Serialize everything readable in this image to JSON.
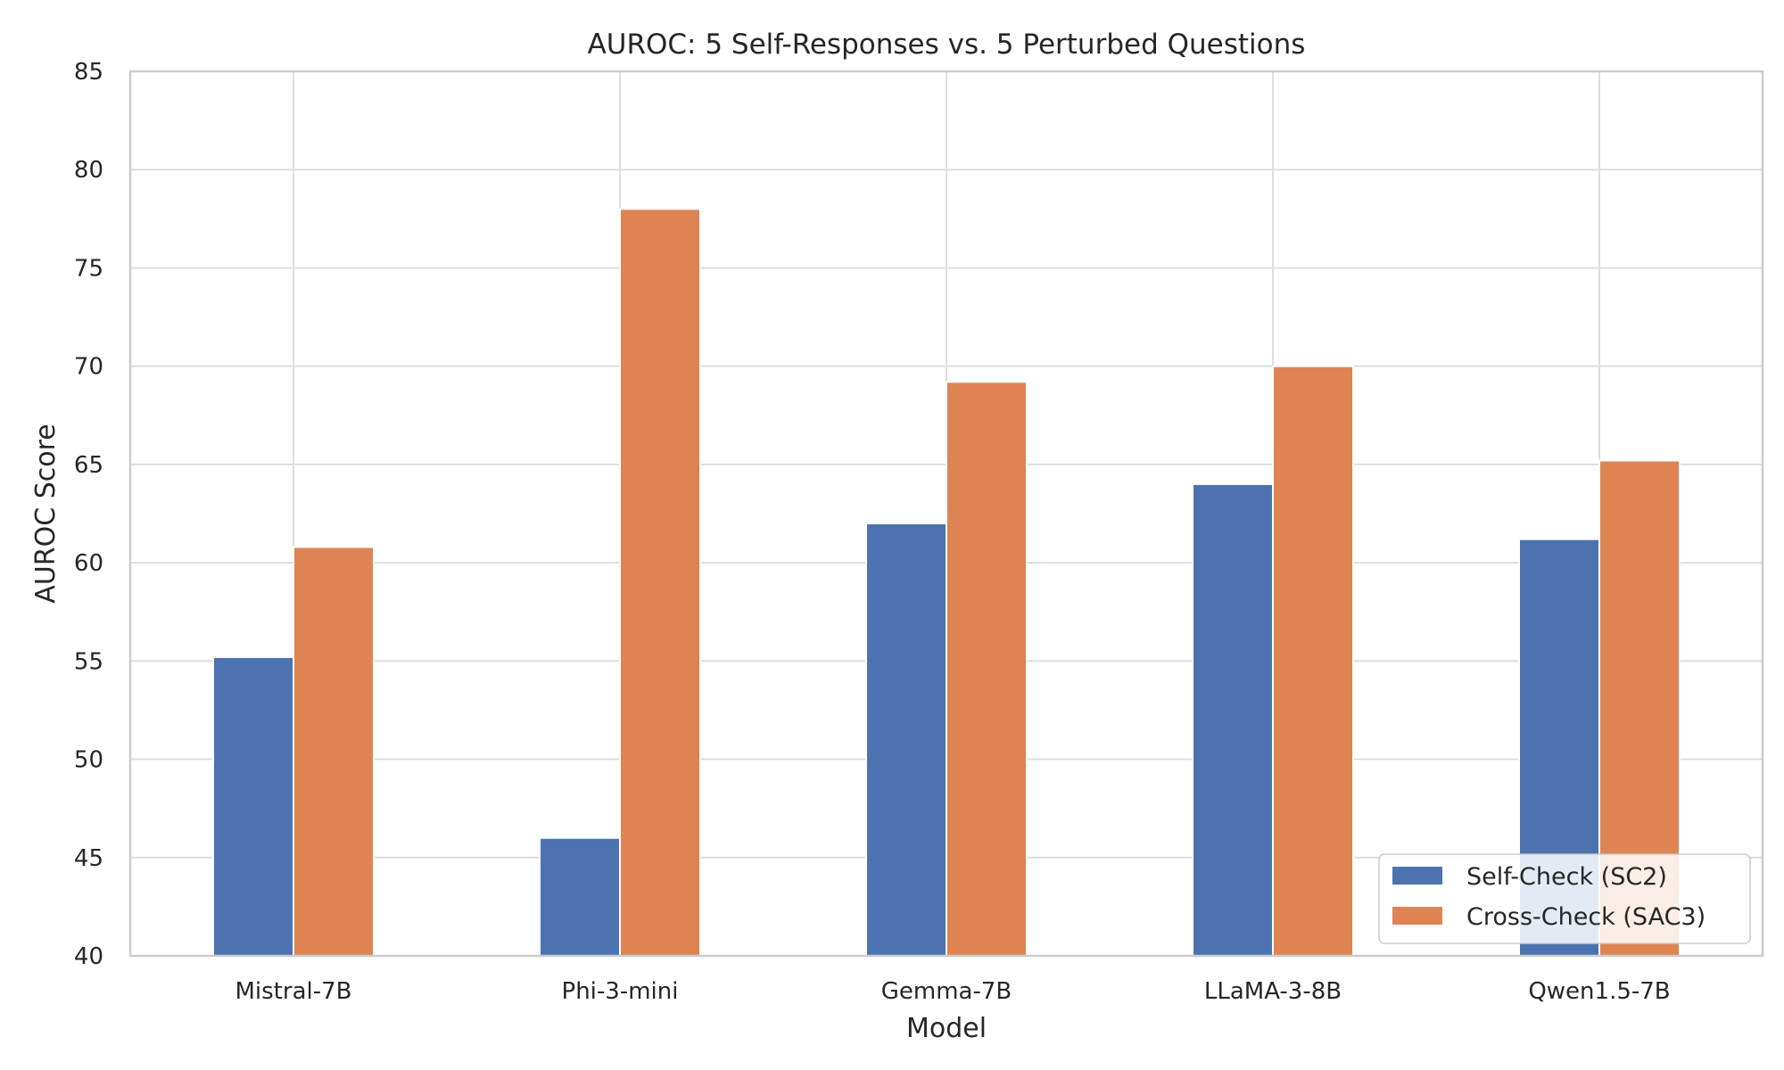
{
  "chart_data": {
    "type": "bar",
    "title": "AUROC: 5 Self-Responses vs. 5 Perturbed Questions",
    "xlabel": "Model",
    "ylabel": "AUROC Score",
    "categories": [
      "Mistral-7B",
      "Phi-3-mini",
      "Gemma-7B",
      "LLaMA-3-8B",
      "Qwen1.5-7B"
    ],
    "series": [
      {
        "name": "Self-Check (SC2)",
        "color": "#4c72b0",
        "values": [
          55.2,
          46.0,
          62.0,
          64.0,
          61.2
        ]
      },
      {
        "name": "Cross-Check (SAC3)",
        "color": "#dd8452",
        "values": [
          60.8,
          78.0,
          69.2,
          70.0,
          65.2
        ]
      }
    ],
    "ylim": [
      40,
      85
    ],
    "yticks": [
      40,
      45,
      50,
      55,
      60,
      65,
      70,
      75,
      80,
      85
    ],
    "grid": true,
    "legend_position": "lower-right"
  }
}
